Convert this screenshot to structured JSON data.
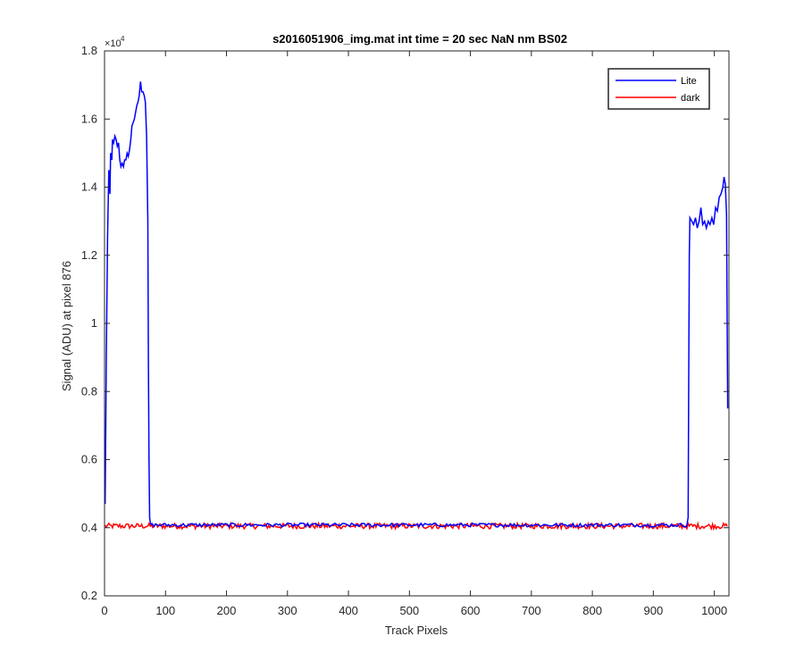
{
  "chart_data": {
    "type": "line",
    "title": "s2016051906_img.mat int time = 20 sec  NaN nm BS02",
    "xlabel": "Track Pixels",
    "ylabel": "Signal (ADU) at pixel 876",
    "xlim": [
      0,
      1024
    ],
    "ylim": [
      2000,
      18000
    ],
    "xticks": [
      0,
      100,
      200,
      300,
      400,
      500,
      600,
      700,
      800,
      900,
      1000
    ],
    "yticks": [
      2000,
      4000,
      6000,
      8000,
      10000,
      12000,
      14000,
      16000,
      18000
    ],
    "ytick_labels": [
      "0.2",
      "0.4",
      "0.6",
      "0.8",
      "1",
      "1.2",
      "1.4",
      "1.6",
      "1.8"
    ],
    "y_exponent_label": "×10",
    "y_exponent_power": "4",
    "legend_position": "top-right",
    "series": [
      {
        "name": "Lite",
        "color": "#0000ff",
        "points": [
          [
            1,
            4700
          ],
          [
            3,
            9000
          ],
          [
            5,
            12500
          ],
          [
            7,
            14500
          ],
          [
            9,
            13800
          ],
          [
            10,
            15000
          ],
          [
            12,
            14800
          ],
          [
            13,
            15400
          ],
          [
            15,
            15300
          ],
          [
            17,
            15500
          ],
          [
            19,
            15400
          ],
          [
            21,
            15200
          ],
          [
            23,
            15300
          ],
          [
            25,
            14800
          ],
          [
            27,
            14600
          ],
          [
            29,
            14700
          ],
          [
            31,
            14600
          ],
          [
            33,
            14800
          ],
          [
            35,
            14800
          ],
          [
            37,
            15000
          ],
          [
            39,
            14900
          ],
          [
            41,
            15100
          ],
          [
            43,
            15400
          ],
          [
            45,
            15800
          ],
          [
            47,
            15900
          ],
          [
            49,
            16000
          ],
          [
            51,
            16200
          ],
          [
            53,
            16400
          ],
          [
            55,
            16500
          ],
          [
            57,
            16700
          ],
          [
            59,
            17100
          ],
          [
            61,
            16800
          ],
          [
            63,
            16800
          ],
          [
            65,
            16700
          ],
          [
            67,
            16500
          ],
          [
            69,
            15500
          ],
          [
            71,
            13000
          ],
          [
            72,
            9000
          ],
          [
            73,
            6000
          ],
          [
            74,
            4300
          ],
          [
            75,
            4150
          ],
          [
            76,
            4100
          ]
        ],
        "flat_start": 76,
        "flat_end": 955,
        "flat_level": 4080,
        "points_end": [
          [
            955,
            4080
          ],
          [
            957,
            4300
          ],
          [
            958,
            8000
          ],
          [
            959,
            12000
          ],
          [
            960,
            13100
          ],
          [
            963,
            13000
          ],
          [
            966,
            12900
          ],
          [
            969,
            13100
          ],
          [
            972,
            12800
          ],
          [
            975,
            13000
          ],
          [
            978,
            13400
          ],
          [
            981,
            12900
          ],
          [
            984,
            13000
          ],
          [
            987,
            12800
          ],
          [
            990,
            13000
          ],
          [
            993,
            12900
          ],
          [
            996,
            13100
          ],
          [
            999,
            12900
          ],
          [
            1002,
            13400
          ],
          [
            1005,
            13300
          ],
          [
            1008,
            13700
          ],
          [
            1011,
            13800
          ],
          [
            1014,
            14000
          ],
          [
            1016,
            14300
          ],
          [
            1018,
            14100
          ],
          [
            1020,
            13200
          ],
          [
            1021,
            10000
          ],
          [
            1022,
            7500
          ]
        ]
      },
      {
        "name": "dark",
        "color": "#ff0000",
        "level": 4050,
        "x_start": 1,
        "x_end": 1022
      }
    ]
  }
}
